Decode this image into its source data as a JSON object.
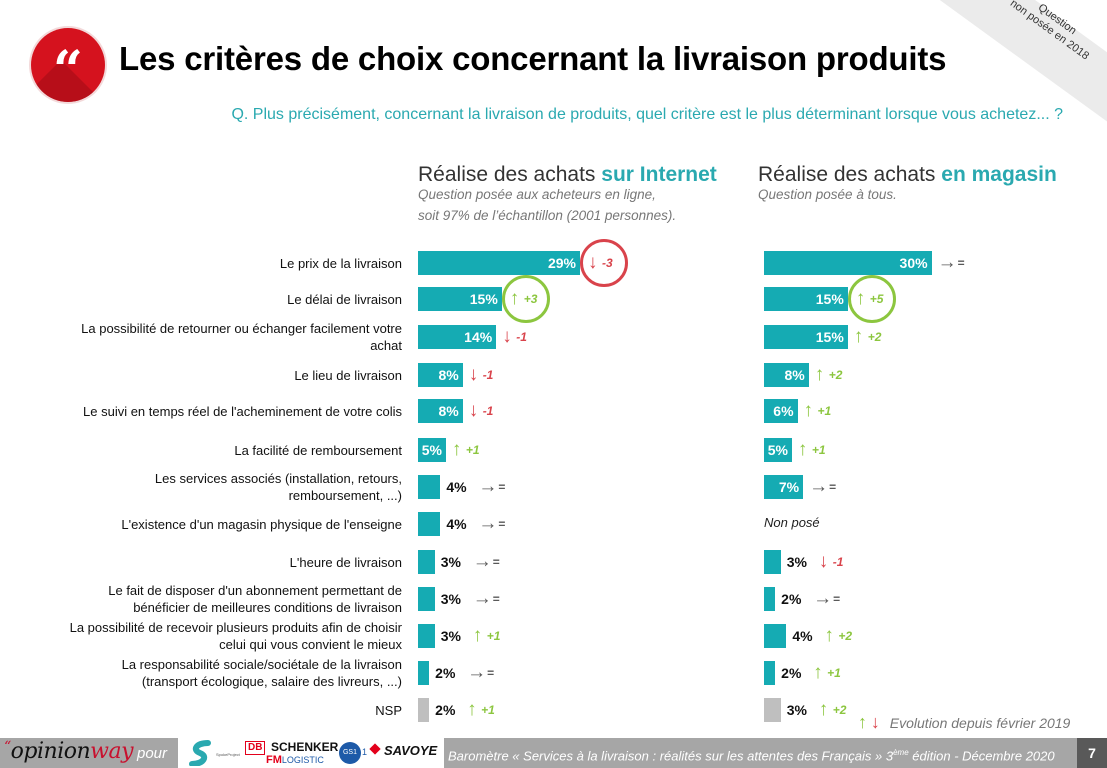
{
  "header": {
    "quote_glyph": "“",
    "title": "Les critères de choix concernant la livraison produits",
    "question": "Q. Plus précisément, concernant la livraison de produits, quel critère est le plus déterminant lorsque vous achetez... ?",
    "ribbon_line1": "Question",
    "ribbon_line2": "non posée en 2018"
  },
  "columns": {
    "internet": {
      "head_prefix": "Réalise des achats ",
      "head_accent": "sur Internet",
      "sub_line1": "Question posée aux acheteurs en ligne,",
      "sub_line2": "soit 97% de l’échantillon (2001 personnes)."
    },
    "magasin": {
      "head_prefix": "Réalise des achats ",
      "head_accent": "en magasin",
      "sub_line1": "Question posée à tous."
    }
  },
  "colors": {
    "bar": "#15abb3",
    "nsp_bar": "#bfbfbf",
    "accent": "#2aa9b0",
    "up": "#8cc63f",
    "down": "#d9434b",
    "flat": "#595959"
  },
  "chart_data": {
    "type": "bar",
    "orientation": "horizontal",
    "title": "Les critères de choix concernant la livraison produits",
    "unit": "%",
    "categories": [
      "Le prix de la livraison",
      "Le délai de livraison",
      "La possibilité de retourner ou échanger facilement votre achat",
      "Le lieu de livraison",
      "Le suivi en temps réel de l'acheminement de votre colis",
      "La facilité de remboursement",
      "Les services associés (installation, retours, remboursement, ...)",
      "L'existence d'un magasin physique de l'enseigne",
      "L'heure de livraison",
      "Le fait de disposer d'un abonnement permettant de bénéficier de meilleures conditions de livraison",
      "La possibilité de recevoir plusieurs produits afin de choisir celui qui vous convient le mieux",
      "La responsabilité sociale/sociétale de la livraison (transport écologique, salaire des livreurs, ...)",
      "NSP"
    ],
    "category_lines": [
      [
        "Le prix de la livraison"
      ],
      [
        "Le délai de livraison"
      ],
      [
        "La possibilité de retourner ou échanger facilement votre",
        "achat"
      ],
      [
        "Le lieu de livraison"
      ],
      [
        "Le suivi en temps réel de l'acheminement de votre colis"
      ],
      [
        "La facilité de remboursement"
      ],
      [
        "Les services associés (installation, retours,",
        "remboursement, ...)"
      ],
      [
        "L'existence d'un magasin physique de l'enseigne"
      ],
      [
        "L'heure de livraison"
      ],
      [
        "Le fait de disposer d'un abonnement permettant de",
        "bénéficier de meilleures conditions de livraison"
      ],
      [
        "La possibilité de recevoir plusieurs produits afin de choisir",
        "celui qui vous convient le mieux"
      ],
      [
        "La responsabilité sociale/sociétale de la livraison",
        "(transport écologique, salaire des livreurs, ...)"
      ],
      [
        "NSP"
      ]
    ],
    "series": [
      {
        "name": "Réalise des achats sur Internet",
        "values": [
          29,
          15,
          14,
          8,
          8,
          5,
          4,
          4,
          3,
          3,
          3,
          2,
          2
        ],
        "evolution": [
          "-3",
          "+3",
          "-1",
          "-1",
          "-1",
          "+1",
          "=",
          "=",
          "=",
          "=",
          "+1",
          "=",
          "+1"
        ],
        "highlighted": [
          0,
          1
        ]
      },
      {
        "name": "Réalise des achats en magasin",
        "values": [
          30,
          15,
          15,
          8,
          6,
          5,
          7,
          null,
          3,
          2,
          4,
          2,
          3
        ],
        "evolution": [
          "=",
          "+5",
          "+2",
          "+2",
          "+1",
          "+1",
          "=",
          null,
          "-1",
          "=",
          "+2",
          "+1",
          "+2"
        ],
        "highlighted": [
          1
        ],
        "missing_label": "Non posé"
      }
    ],
    "legend": "Evolution depuis février 2019",
    "xlim": [
      0,
      30
    ]
  },
  "legend": {
    "up_glyph": "↑",
    "down_glyph": "↓",
    "text": "Evolution depuis février 2019"
  },
  "footer": {
    "logo_quote": "“",
    "logo_opinion": "opinion",
    "logo_way": "way",
    "pour": "pour",
    "partners": {
      "spoke": "SpokeProject",
      "db": "DB",
      "schenker": "SCHENKER",
      "fm": "FM",
      "logistic": "LOGISTIC",
      "gs1": "GS1",
      "gs1_sub": "1",
      "savoye": "SAVOYE"
    },
    "baro_prefix": "Baromètre  « Services à la livraison : réalités sur les attentes des Français » 3",
    "baro_sup": "ème",
    "baro_suffix": " édition - Décembre 2020",
    "page": "7"
  }
}
